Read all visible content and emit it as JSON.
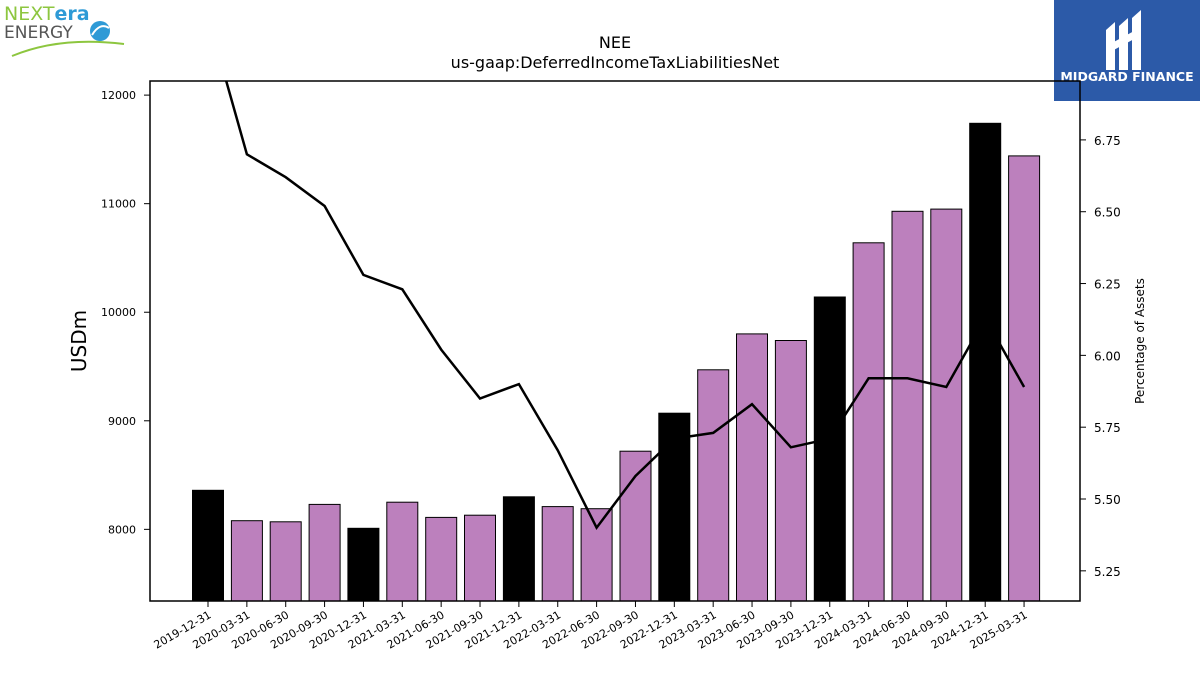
{
  "logos": {
    "left": {
      "line1a": "NEXT",
      "line1b": "era",
      "line2": "ENERGY"
    },
    "right": {
      "name": "MIDGARD FINANCE"
    }
  },
  "colors": {
    "bar_regular": "#bc80bd",
    "bar_highlight": "#000000",
    "line": "#000000",
    "logo_right_bg": "#2c5aa8",
    "logo_green": "#8dc63f",
    "logo_blue": "#2e9ad6"
  },
  "chart_data": {
    "type": "bar",
    "title": "NEE",
    "subtitle": "us-gaap:DeferredIncomeTaxLiabilitiesNet",
    "ylabel": "USDm",
    "y2label": "Percentage of Assets",
    "categories": [
      "2019-12-31",
      "2020-03-31",
      "2020-06-30",
      "2020-09-30",
      "2020-12-31",
      "2021-03-31",
      "2021-06-30",
      "2021-09-30",
      "2021-12-31",
      "2022-03-31",
      "2022-06-30",
      "2022-09-30",
      "2022-12-31",
      "2023-03-31",
      "2023-06-30",
      "2023-09-30",
      "2023-12-31",
      "2024-03-31",
      "2024-06-30",
      "2024-09-30",
      "2024-12-31",
      "2025-03-31"
    ],
    "values": [
      8360,
      8080,
      8070,
      8230,
      8010,
      8250,
      8110,
      8130,
      8300,
      8210,
      8190,
      8720,
      9070,
      9470,
      9800,
      9740,
      10140,
      10640,
      10930,
      10950,
      11740,
      11440
    ],
    "highlight": [
      true,
      false,
      false,
      false,
      true,
      false,
      false,
      false,
      true,
      false,
      false,
      false,
      true,
      false,
      false,
      false,
      true,
      false,
      false,
      false,
      true,
      false
    ],
    "pct_of_assets": [
      7.18,
      6.7,
      6.62,
      6.52,
      6.28,
      6.23,
      6.02,
      5.85,
      5.9,
      5.67,
      5.4,
      5.58,
      5.71,
      5.73,
      5.83,
      5.68,
      5.71,
      5.92,
      5.92,
      5.89,
      6.13,
      5.89
    ],
    "ylim": [
      7340,
      12130
    ],
    "y2lim": [
      5.145,
      6.955
    ],
    "yticks": [
      8000,
      9000,
      10000,
      11000,
      12000
    ],
    "y2ticks": [
      5.25,
      5.5,
      5.75,
      6.0,
      6.25,
      6.5,
      6.75
    ],
    "y2tick_labels": [
      "5.25",
      "5.50",
      "5.75",
      "6.00",
      "6.25",
      "6.50",
      "6.75"
    ],
    "grid": false,
    "legend": "none"
  }
}
